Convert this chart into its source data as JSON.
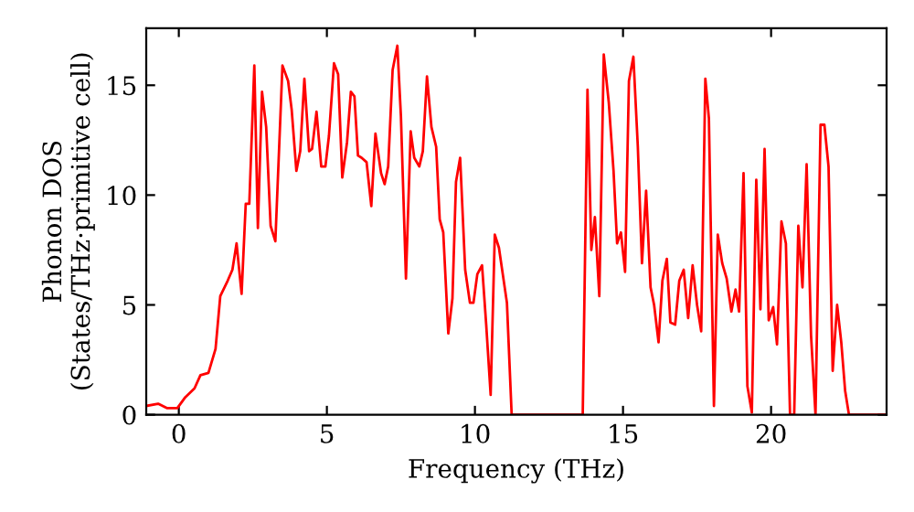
{
  "chart_data": {
    "type": "line",
    "xlabel": "Frequency (THz)",
    "ylabel": "Phonon DOS\n(States/THz·primitive cell)",
    "xlim": [
      -1.1,
      23.9
    ],
    "ylim": [
      0,
      17.6
    ],
    "xticks": [
      0,
      5,
      10,
      15,
      20
    ],
    "yticks": [
      0,
      5,
      10,
      15
    ],
    "grid": false,
    "marker": "none",
    "line_style": "solid",
    "series": [
      {
        "color": "#ff0000",
        "x": [
          -1.1,
          -0.7,
          -0.39,
          -0.05,
          0.22,
          0.53,
          0.73,
          1.0,
          1.24,
          1.4,
          1.65,
          1.81,
          1.95,
          2.12,
          2.26,
          2.38,
          2.55,
          2.67,
          2.81,
          2.95,
          3.1,
          3.26,
          3.5,
          3.69,
          3.81,
          3.97,
          4.1,
          4.24,
          4.4,
          4.5,
          4.65,
          4.81,
          4.95,
          5.07,
          5.24,
          5.38,
          5.52,
          5.68,
          5.81,
          5.93,
          6.05,
          6.17,
          6.34,
          6.5,
          6.64,
          6.83,
          6.95,
          7.07,
          7.22,
          7.38,
          7.5,
          7.67,
          7.83,
          7.95,
          8.12,
          8.24,
          8.38,
          8.53,
          8.69,
          8.81,
          8.93,
          9.1,
          9.24,
          9.36,
          9.5,
          9.67,
          9.83,
          9.95,
          10.08,
          10.24,
          10.38,
          10.53,
          10.67,
          10.81,
          11.08,
          11.24,
          13.64,
          13.8,
          13.93,
          14.05,
          14.2,
          14.35,
          14.52,
          14.68,
          14.8,
          14.93,
          15.07,
          15.2,
          15.35,
          15.5,
          15.64,
          15.78,
          15.93,
          16.05,
          16.2,
          16.33,
          16.48,
          16.6,
          16.76,
          16.9,
          17.05,
          17.2,
          17.35,
          17.5,
          17.64,
          17.78,
          17.9,
          18.07,
          18.2,
          18.35,
          18.5,
          18.66,
          18.8,
          18.92,
          19.07,
          19.2,
          19.35,
          19.5,
          19.64,
          19.78,
          19.92,
          20.07,
          20.2,
          20.35,
          20.5,
          20.64,
          20.78,
          20.92,
          21.06,
          21.2,
          21.35,
          21.5,
          21.67,
          21.8,
          21.94,
          22.08,
          22.23,
          22.37,
          22.5,
          22.63,
          23.9
        ],
        "values": [
          0.4,
          0.5,
          0.3,
          0.3,
          0.8,
          1.2,
          1.8,
          1.9,
          3.0,
          5.4,
          6.1,
          6.6,
          7.8,
          5.5,
          9.6,
          9.6,
          15.9,
          8.5,
          14.7,
          13.1,
          8.6,
          7.9,
          15.9,
          15.2,
          13.9,
          11.1,
          12.0,
          15.3,
          12.0,
          12.1,
          13.8,
          11.3,
          11.3,
          12.7,
          16.0,
          15.5,
          10.8,
          12.4,
          14.7,
          14.5,
          11.8,
          11.7,
          11.5,
          9.5,
          12.8,
          11.0,
          10.5,
          11.3,
          15.7,
          16.8,
          13.6,
          6.2,
          12.9,
          11.7,
          11.3,
          12.0,
          15.4,
          13.1,
          12.2,
          8.9,
          8.3,
          3.7,
          5.3,
          10.6,
          11.7,
          6.6,
          5.1,
          5.1,
          6.4,
          6.8,
          4.1,
          0.9,
          8.2,
          7.6,
          5.1,
          0,
          0,
          14.8,
          7.5,
          9.0,
          5.4,
          16.4,
          14.2,
          11.1,
          7.8,
          8.3,
          6.5,
          15.2,
          16.3,
          12.2,
          6.9,
          10.2,
          5.8,
          5.0,
          3.3,
          6.1,
          7.1,
          4.2,
          4.1,
          6.1,
          6.6,
          4.4,
          6.8,
          5.0,
          3.8,
          15.3,
          13.5,
          0.4,
          8.2,
          6.9,
          6.2,
          4.7,
          5.7,
          4.7,
          11.0,
          1.3,
          0.1,
          10.7,
          4.8,
          12.1,
          4.3,
          4.9,
          3.2,
          8.8,
          7.8,
          0,
          0,
          8.6,
          5.8,
          11.4,
          3.6,
          0,
          13.2,
          13.2,
          11.3,
          2.0,
          5.0,
          3.3,
          1.1,
          0,
          0
        ]
      }
    ]
  }
}
